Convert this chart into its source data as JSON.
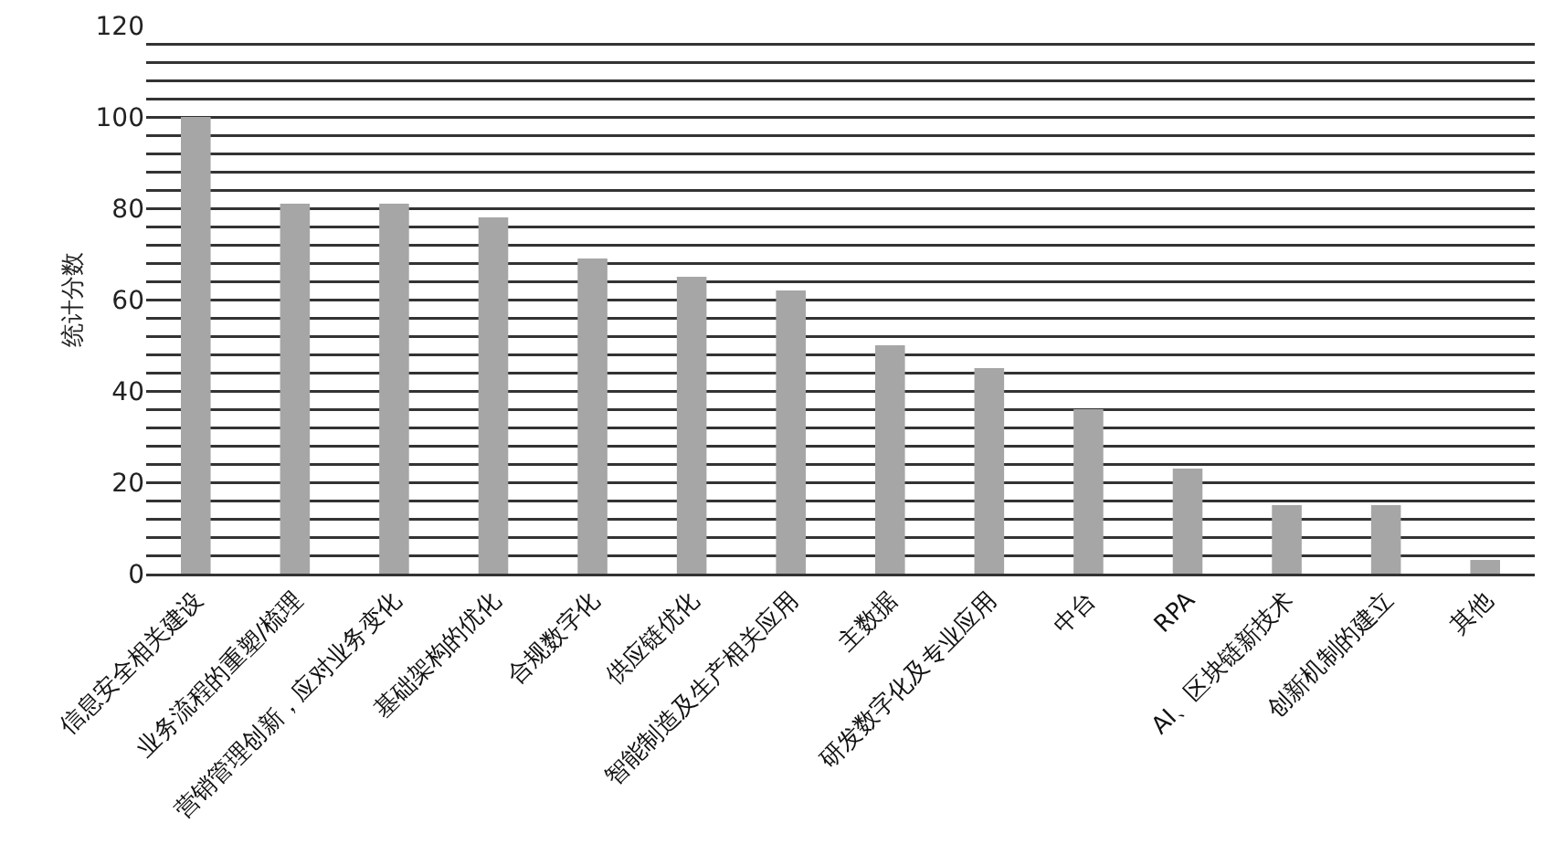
{
  "chart_data": {
    "type": "bar",
    "ylabel": "统计分数",
    "categories": [
      "信息安全相关建设",
      "业务流程的重塑/梳理",
      "营销管理创新，应对业务变化",
      "基础架构的优化",
      "合规数字化",
      "供应链优化",
      "智能制造及生产相关应用",
      "主数据",
      "研发数字化及专业应用",
      "中台",
      "RPA",
      "AI、区块链新技术",
      "创新机制的建立",
      "其他"
    ],
    "values": [
      100,
      81,
      81,
      78,
      69,
      65,
      62,
      50,
      45,
      36,
      23,
      15,
      15,
      3
    ],
    "color": "#a6a6a6",
    "ylim": [
      0,
      120
    ],
    "yticks": [
      0,
      {
        "value": 4,
        "label": null
      },
      {
        "value": 8,
        "label": null
      },
      {
        "value": 12,
        "label": null
      },
      {
        "value": 16,
        "label": null
      },
      20,
      {
        "value": 24,
        "label": null
      },
      {
        "value": 28,
        "label": null
      },
      {
        "value": 32,
        "label": null
      },
      {
        "value": 36,
        "label": null
      },
      40,
      {
        "value": 44,
        "label": null
      },
      {
        "value": 48,
        "label": null
      },
      {
        "value": 52,
        "label": null
      },
      {
        "value": 56,
        "label": null
      },
      60,
      {
        "value": 64,
        "label": null
      },
      {
        "value": 68,
        "label": null
      },
      {
        "value": 72,
        "label": null
      },
      {
        "value": 76,
        "label": null
      },
      80,
      {
        "value": 84,
        "label": null
      },
      {
        "value": 88,
        "label": null
      },
      {
        "value": 92,
        "label": null
      },
      {
        "value": 96,
        "label": null
      },
      100,
      {
        "value": 104,
        "label": null
      },
      {
        "value": 108,
        "label": null
      },
      {
        "value": 112,
        "label": null
      },
      {
        "value": 116,
        "label": null
      },
      120
    ],
    "grid": true
  }
}
